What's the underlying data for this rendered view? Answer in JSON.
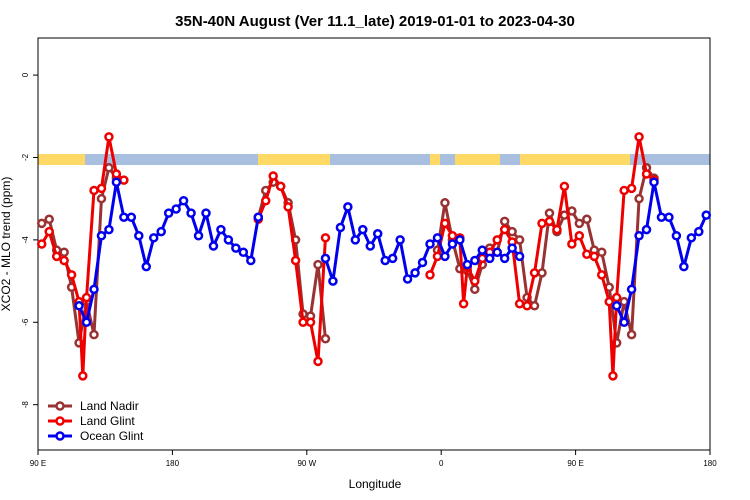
{
  "chart_data": {
    "type": "line",
    "title": "35N-40N August (Ver 11.1_late)   2019-01-01 to 2023-04-30",
    "xlabel": "Longitude",
    "ylabel": "XCO2 - MLO trend (ppm)",
    "xlim": [
      90,
      540
    ],
    "ylim": [
      -9.1,
      0.9
    ],
    "xticks": [
      {
        "value": 90,
        "label": "90 E"
      },
      180,
      {
        "value": 270,
        "label": "90 W"
      },
      {
        "value": 360,
        "label": "0"
      },
      {
        "value": 450,
        "label": "90 E"
      },
      {
        "value": 540,
        "label": "180"
      }
    ],
    "yticks": [
      0,
      -2,
      -4,
      -6,
      -8
    ],
    "legend": "bottomleft",
    "series": [
      {
        "name": "Land Nadir",
        "color": "#993333",
        "x": [
          92.5,
          97.5,
          102.5,
          107.5,
          112.5,
          117.5,
          122.5,
          127.5,
          132.5,
          137.5,
          142.5,
          190,
          237.5,
          242.5,
          247.5,
          252.5,
          257.5,
          262.5,
          267.5,
          272.5,
          277.5,
          282.5,
          320,
          357.5,
          362.5,
          367.5,
          372.5,
          377.5,
          382.5,
          387.5,
          392.5,
          397.5,
          402.5,
          407.5,
          412.5,
          417.5,
          422.5,
          427.5,
          432.5,
          437.5,
          442.5,
          447.5,
          452.5,
          457.5,
          462.5,
          467.5,
          472.5,
          477.5,
          482.5,
          487.5,
          492.5,
          497.5,
          502.5
        ],
        "values": [
          -3.6,
          -3.5,
          -4.25,
          -4.3,
          -5.15,
          -6.5,
          -5.5,
          -6.3,
          -3.0,
          -2.25,
          -2.5,
          null,
          -3.45,
          -2.8,
          -2.6,
          -2.7,
          -3.1,
          -4.0,
          -5.8,
          -5.85,
          -4.6,
          -6.4,
          null,
          -4.25,
          -3.1,
          -4.0,
          -4.7,
          -4.75,
          -5.2,
          -4.6,
          -4.2,
          -4.3,
          -3.55,
          -3.8,
          -4.0,
          -5.4,
          -5.6,
          -4.8,
          -3.35,
          -3.8,
          -3.4,
          -3.3,
          -3.6,
          -3.5,
          -4.25,
          -4.3,
          -5.15,
          -6.5,
          -5.5,
          -6.3,
          -3.0,
          -2.25,
          -2.5
        ]
      },
      {
        "name": "Land Glint",
        "color": "#ee0000",
        "x": [
          92.5,
          97.5,
          102.5,
          107.5,
          112.5,
          117.5,
          120,
          122.5,
          127.5,
          132.5,
          137.5,
          142.5,
          147.5,
          190,
          237.5,
          242.5,
          247.5,
          252.5,
          257.5,
          262.5,
          267.5,
          272.5,
          277.5,
          282.5,
          320,
          352.5,
          357.5,
          362.5,
          367.5,
          372.5,
          375,
          377.5,
          382.5,
          387.5,
          392.5,
          397.5,
          402.5,
          407.5,
          412.5,
          417.5,
          422.5,
          427.5,
          432.5,
          437.5,
          442.5,
          447.5,
          452.5,
          457.5,
          462.5,
          467.5,
          472.5,
          475,
          477.5,
          482.5,
          487.5,
          492.5,
          497.5,
          502.5
        ],
        "values": [
          -4.1,
          -3.8,
          -4.4,
          -4.5,
          -4.85,
          -5.5,
          -7.3,
          -5.4,
          -2.8,
          -2.75,
          -1.5,
          -2.4,
          -2.55,
          null,
          -3.5,
          -3.05,
          -2.45,
          -2.7,
          -3.2,
          -4.5,
          -6.0,
          -6.0,
          -6.95,
          -3.95,
          null,
          -4.85,
          -4.4,
          -3.6,
          -3.9,
          -3.95,
          -5.55,
          -4.65,
          -5.0,
          -4.45,
          -4.3,
          -4.0,
          -3.75,
          -4.05,
          -5.55,
          -5.6,
          -4.8,
          -3.6,
          -3.55,
          -3.75,
          -2.7,
          -4.1,
          -3.9,
          -4.35,
          -4.4,
          -4.85,
          -5.5,
          -7.3,
          -5.4,
          -2.8,
          -2.75,
          -1.5,
          -2.4,
          -2.55
        ]
      },
      {
        "name": "Ocean Glint",
        "color": "#0000ee",
        "x": [
          117.5,
          122.5,
          127.5,
          132.5,
          137.5,
          142.5,
          147.5,
          152.5,
          157.5,
          162.5,
          167.5,
          172.5,
          177.5,
          182.5,
          187.5,
          192.5,
          197.5,
          202.5,
          207.5,
          212.5,
          217.5,
          222.5,
          227.5,
          232.5,
          237.5,
          260,
          282.5,
          287.5,
          292.5,
          297.5,
          302.5,
          307.5,
          312.5,
          317.5,
          322.5,
          327.5,
          332.5,
          337.5,
          342.5,
          347.5,
          352.5,
          357.5,
          362.5,
          367.5,
          372.5,
          377.5,
          382.5,
          387.5,
          392.5,
          397.5,
          402.5,
          407.5,
          412.5,
          445,
          477.5,
          482.5,
          487.5,
          492.5,
          497.5,
          502.5,
          507.5,
          512.5,
          517.5,
          522.5,
          527.5,
          532.5,
          537.5
        ],
        "values": [
          -5.6,
          -6.0,
          -5.2,
          -3.9,
          -3.75,
          -2.6,
          -3.45,
          -3.45,
          -3.9,
          -4.65,
          -3.95,
          -3.8,
          -3.35,
          -3.25,
          -3.05,
          -3.35,
          -3.9,
          -3.35,
          -4.15,
          -3.75,
          -4.0,
          -4.2,
          -4.3,
          -4.5,
          -3.45,
          null,
          -4.45,
          -5.0,
          -3.7,
          -3.2,
          -4.0,
          -3.75,
          -4.15,
          -3.85,
          -4.5,
          -4.45,
          -4.0,
          -4.95,
          -4.8,
          -4.55,
          -4.1,
          -3.95,
          -4.4,
          -4.1,
          -4.0,
          -4.6,
          -4.5,
          -4.25,
          -4.45,
          -4.3,
          -4.45,
          -4.2,
          -4.4,
          null,
          -5.6,
          -6.0,
          -5.2,
          -3.9,
          -3.75,
          -2.6,
          -3.45,
          -3.45,
          -3.9,
          -4.65,
          -3.95,
          -3.8,
          -3.4
        ]
      }
    ]
  }
}
